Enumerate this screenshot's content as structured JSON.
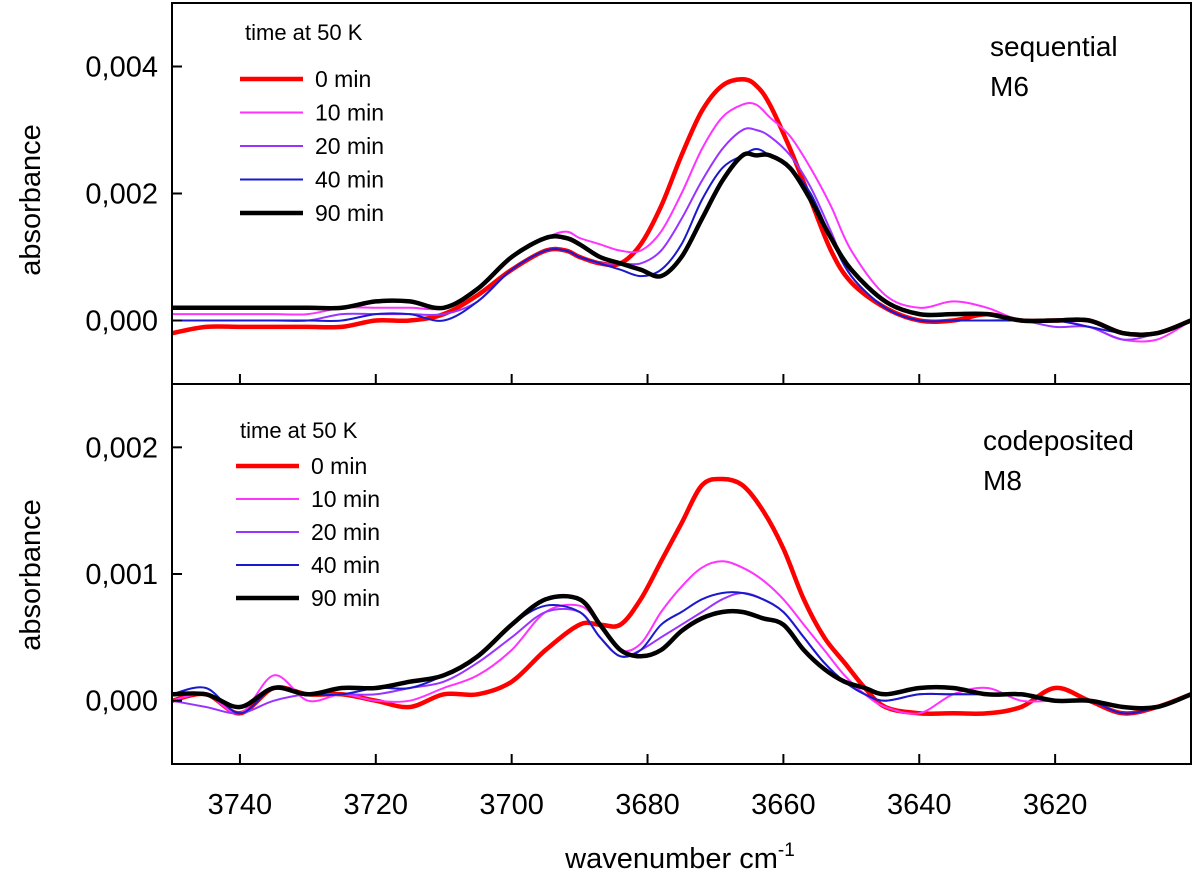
{
  "chart_data": [
    {
      "type": "line",
      "panel": "top",
      "annotation": [
        "sequential",
        "M6"
      ],
      "legend_title": "time at 50 K",
      "ylabel": "absorbance",
      "xlabel": "wavenumber cm-1",
      "xlim": [
        3750,
        3600
      ],
      "ylim": [
        -0.001,
        0.005
      ],
      "yticks": [
        0.0,
        0.002,
        0.004
      ],
      "ytick_labels": [
        "0,000",
        "0,002",
        "0,004"
      ],
      "series": [
        {
          "name": "0 min",
          "color": "#ff0000",
          "width": 4.5,
          "x": [
            3750,
            3745,
            3740,
            3735,
            3730,
            3725,
            3720,
            3715,
            3710,
            3705,
            3700,
            3695,
            3692,
            3690,
            3687,
            3684,
            3681,
            3678,
            3675,
            3672,
            3669,
            3666,
            3664,
            3662,
            3659,
            3656,
            3653,
            3650,
            3645,
            3640,
            3635,
            3630,
            3625,
            3620,
            3615,
            3610,
            3605,
            3600
          ],
          "y": [
            -0.0002,
            -0.0001,
            -0.0001,
            -0.0001,
            -0.0001,
            -0.0001,
            0.0,
            0.0,
            0.0001,
            0.0004,
            0.0008,
            0.0011,
            0.0011,
            0.001,
            0.0009,
            0.0009,
            0.0012,
            0.0018,
            0.0026,
            0.0033,
            0.0037,
            0.0038,
            0.0037,
            0.0034,
            0.0027,
            0.0019,
            0.0011,
            0.0006,
            0.0002,
            0.0,
            0.0,
            0.0001,
            0.0,
            0.0,
            0.0,
            -0.0002,
            -0.0002,
            0.0
          ]
        },
        {
          "name": "10 min",
          "color": "#ff33ff",
          "width": 2,
          "x": [
            3750,
            3745,
            3740,
            3735,
            3730,
            3725,
            3720,
            3715,
            3710,
            3705,
            3700,
            3695,
            3692,
            3690,
            3687,
            3684,
            3681,
            3678,
            3675,
            3672,
            3669,
            3666,
            3664,
            3662,
            3659,
            3656,
            3653,
            3650,
            3645,
            3640,
            3635,
            3630,
            3625,
            3620,
            3615,
            3610,
            3605,
            3600
          ],
          "y": [
            0.0001,
            0.0001,
            0.0001,
            0.0001,
            0.0001,
            0.0002,
            0.0002,
            0.0002,
            0.0002,
            0.0005,
            0.001,
            0.0013,
            0.0014,
            0.0013,
            0.0012,
            0.0011,
            0.0011,
            0.0014,
            0.002,
            0.0027,
            0.0032,
            0.0034,
            0.0034,
            0.0032,
            0.0029,
            0.0024,
            0.0018,
            0.0011,
            0.0004,
            0.0002,
            0.0003,
            0.0002,
            0.0,
            0.0,
            -0.0001,
            -0.0003,
            -0.0003,
            0.0
          ]
        },
        {
          "name": "20 min",
          "color": "#9933ff",
          "width": 2,
          "x": [
            3750,
            3745,
            3740,
            3735,
            3730,
            3725,
            3720,
            3715,
            3710,
            3705,
            3700,
            3695,
            3692,
            3690,
            3687,
            3684,
            3681,
            3678,
            3675,
            3672,
            3669,
            3666,
            3664,
            3662,
            3659,
            3656,
            3653,
            3650,
            3645,
            3640,
            3635,
            3630,
            3625,
            3620,
            3615,
            3610,
            3605,
            3600
          ],
          "y": [
            0.0,
            0.0,
            0.0,
            0.0,
            0.0,
            0.0001,
            0.0001,
            0.0001,
            0.0001,
            0.0003,
            0.0008,
            0.0011,
            0.0011,
            0.001,
            0.0009,
            0.0009,
            0.0009,
            0.0011,
            0.0016,
            0.0022,
            0.0027,
            0.003,
            0.003,
            0.0029,
            0.0026,
            0.0021,
            0.0014,
            0.0007,
            0.0002,
            0.0,
            0.0,
            0.0,
            0.0,
            -0.0001,
            -0.0001,
            -0.0003,
            -0.0002,
            0.0
          ]
        },
        {
          "name": "40 min",
          "color": "#1a1acc",
          "width": 2,
          "x": [
            3750,
            3745,
            3740,
            3735,
            3730,
            3725,
            3720,
            3715,
            3710,
            3705,
            3700,
            3695,
            3692,
            3690,
            3687,
            3684,
            3681,
            3678,
            3675,
            3672,
            3669,
            3666,
            3664,
            3662,
            3659,
            3656,
            3653,
            3650,
            3645,
            3640,
            3635,
            3630,
            3625,
            3620,
            3615,
            3610,
            3605,
            3600
          ],
          "y": [
            0.0,
            0.0,
            0.0,
            0.0,
            0.0,
            0.0,
            0.0001,
            0.0001,
            0.0,
            0.0003,
            0.0008,
            0.0011,
            0.0011,
            0.001,
            0.0009,
            0.0008,
            0.0007,
            0.0008,
            0.0012,
            0.0019,
            0.0024,
            0.0026,
            0.0027,
            0.0026,
            0.0024,
            0.002,
            0.0013,
            0.0007,
            0.0002,
            0.0,
            0.0,
            0.0,
            0.0,
            0.0,
            -0.0001,
            -0.0002,
            -0.0002,
            0.0
          ]
        },
        {
          "name": "90 min",
          "color": "#000000",
          "width": 4.5,
          "x": [
            3750,
            3745,
            3740,
            3735,
            3730,
            3725,
            3720,
            3715,
            3710,
            3705,
            3700,
            3695,
            3692,
            3690,
            3687,
            3684,
            3681,
            3678,
            3675,
            3672,
            3669,
            3666,
            3664,
            3662,
            3659,
            3656,
            3653,
            3650,
            3645,
            3640,
            3635,
            3630,
            3625,
            3620,
            3615,
            3610,
            3605,
            3600
          ],
          "y": [
            0.0002,
            0.0002,
            0.0002,
            0.0002,
            0.0002,
            0.0002,
            0.0003,
            0.0003,
            0.0002,
            0.0005,
            0.001,
            0.0013,
            0.0013,
            0.0012,
            0.001,
            0.0009,
            0.0008,
            0.0007,
            0.001,
            0.0016,
            0.0022,
            0.0026,
            0.0026,
            0.0026,
            0.0024,
            0.0019,
            0.0013,
            0.0008,
            0.0003,
            0.0001,
            0.0001,
            0.0001,
            0.0,
            0.0,
            0.0,
            -0.0002,
            -0.0002,
            0.0
          ]
        }
      ]
    },
    {
      "type": "line",
      "panel": "bottom",
      "annotation": [
        "codeposited",
        "M8"
      ],
      "legend_title": "time at 50 K",
      "ylabel": "absorbance",
      "xlabel": "wavenumber cm-1",
      "xlim": [
        3750,
        3600
      ],
      "xticks": [
        3740,
        3720,
        3700,
        3680,
        3660,
        3640,
        3620
      ],
      "xtick_labels": [
        "3740",
        "3720",
        "3700",
        "3680",
        "3660",
        "3640",
        "3620"
      ],
      "ylim": [
        -0.0005,
        0.0025
      ],
      "yticks": [
        0.0,
        0.001,
        0.002
      ],
      "ytick_labels": [
        "0,000",
        "0,001",
        "0,002"
      ],
      "series": [
        {
          "name": "0 min",
          "color": "#ff0000",
          "width": 4.5,
          "x": [
            3750,
            3745,
            3740,
            3735,
            3730,
            3725,
            3720,
            3715,
            3710,
            3705,
            3700,
            3695,
            3690,
            3687,
            3684,
            3681,
            3678,
            3675,
            3672,
            3669,
            3666,
            3663,
            3660,
            3657,
            3654,
            3651,
            3648,
            3645,
            3640,
            3635,
            3630,
            3625,
            3620,
            3615,
            3610,
            3605,
            3600
          ],
          "y": [
            0.0,
            5e-05,
            -0.0001,
            0.0001,
            5e-05,
            5e-05,
            0.0,
            -5e-05,
            5e-05,
            5e-05,
            0.00015,
            0.0004,
            0.0006,
            0.0006,
            0.0006,
            0.0008,
            0.0011,
            0.0014,
            0.0017,
            0.00175,
            0.0017,
            0.0015,
            0.0012,
            0.0008,
            0.0005,
            0.0003,
            0.0001,
            -5e-05,
            -0.0001,
            -0.0001,
            -0.0001,
            -5e-05,
            0.0001,
            0.0,
            -0.0001,
            -5e-05,
            5e-05
          ]
        },
        {
          "name": "10 min",
          "color": "#ff33ff",
          "width": 2,
          "x": [
            3750,
            3745,
            3740,
            3735,
            3730,
            3725,
            3720,
            3715,
            3710,
            3705,
            3700,
            3695,
            3690,
            3687,
            3684,
            3681,
            3678,
            3675,
            3672,
            3669,
            3666,
            3663,
            3660,
            3657,
            3654,
            3651,
            3648,
            3645,
            3640,
            3635,
            3630,
            3625,
            3620,
            3615,
            3610,
            3605,
            3600
          ],
          "y": [
            0.0,
            5e-05,
            -0.0001,
            0.0002,
            0.0,
            5e-05,
            0.0,
            0.0,
            0.0001,
            0.0002,
            0.0004,
            0.0007,
            0.00075,
            0.0006,
            0.0004,
            0.00045,
            0.0007,
            0.0009,
            0.00105,
            0.0011,
            0.00105,
            0.00095,
            0.0008,
            0.0006,
            0.0004,
            0.0002,
            5e-05,
            -5e-05,
            -0.0001,
            5e-05,
            0.0001,
            0.0,
            0.0,
            0.0,
            -0.0001,
            -5e-05,
            5e-05
          ]
        },
        {
          "name": "20 min",
          "color": "#9933ff",
          "width": 2,
          "x": [
            3750,
            3745,
            3740,
            3735,
            3730,
            3725,
            3720,
            3715,
            3710,
            3705,
            3700,
            3695,
            3690,
            3687,
            3684,
            3681,
            3678,
            3675,
            3672,
            3669,
            3666,
            3663,
            3660,
            3657,
            3654,
            3651,
            3648,
            3645,
            3640,
            3635,
            3630,
            3625,
            3620,
            3615,
            3610,
            3605,
            3600
          ],
          "y": [
            0.0,
            -5e-05,
            -0.0001,
            0.0,
            5e-05,
            5e-05,
            5e-05,
            0.0001,
            0.00015,
            0.0003,
            0.0005,
            0.0007,
            0.0007,
            0.0005,
            0.00035,
            0.0004,
            0.0005,
            0.0006,
            0.0007,
            0.0008,
            0.00085,
            0.0008,
            0.0007,
            0.0005,
            0.0003,
            0.00015,
            5e-05,
            0.0,
            5e-05,
            5e-05,
            5e-05,
            5e-05,
            0.0,
            0.0,
            -0.0001,
            -5e-05,
            5e-05
          ]
        },
        {
          "name": "40 min",
          "color": "#1a1acc",
          "width": 2,
          "x": [
            3750,
            3745,
            3740,
            3735,
            3730,
            3725,
            3720,
            3715,
            3710,
            3705,
            3700,
            3695,
            3690,
            3687,
            3684,
            3681,
            3678,
            3675,
            3672,
            3669,
            3666,
            3663,
            3660,
            3657,
            3654,
            3651,
            3648,
            3645,
            3640,
            3635,
            3630,
            3625,
            3620,
            3615,
            3610,
            3605,
            3600
          ],
          "y": [
            5e-05,
            0.0001,
            -0.0001,
            0.0001,
            5e-05,
            5e-05,
            0.0001,
            0.0001,
            0.0002,
            0.00035,
            0.0006,
            0.00075,
            0.0007,
            0.0005,
            0.00035,
            0.0004,
            0.0006,
            0.0007,
            0.0008,
            0.00085,
            0.00085,
            0.0008,
            0.0007,
            0.0005,
            0.0003,
            0.00015,
            5e-05,
            0.0,
            5e-05,
            5e-05,
            5e-05,
            5e-05,
            0.0,
            0.0,
            -0.0001,
            -5e-05,
            5e-05
          ]
        },
        {
          "name": "90 min",
          "color": "#000000",
          "width": 4.5,
          "x": [
            3750,
            3745,
            3740,
            3735,
            3730,
            3725,
            3720,
            3715,
            3710,
            3705,
            3700,
            3695,
            3690,
            3687,
            3684,
            3681,
            3678,
            3675,
            3672,
            3669,
            3666,
            3663,
            3660,
            3657,
            3654,
            3651,
            3648,
            3645,
            3640,
            3635,
            3630,
            3625,
            3620,
            3615,
            3610,
            3605,
            3600
          ],
          "y": [
            5e-05,
            5e-05,
            -5e-05,
            0.0001,
            5e-05,
            0.0001,
            0.0001,
            0.00015,
            0.0002,
            0.00035,
            0.0006,
            0.0008,
            0.0008,
            0.0006,
            0.0004,
            0.00035,
            0.0004,
            0.00055,
            0.00065,
            0.0007,
            0.0007,
            0.00065,
            0.0006,
            0.0004,
            0.00025,
            0.00015,
            0.0001,
            5e-05,
            0.0001,
            0.0001,
            5e-05,
            5e-05,
            0.0,
            0.0,
            -5e-05,
            -5e-05,
            5e-05
          ]
        }
      ]
    }
  ]
}
